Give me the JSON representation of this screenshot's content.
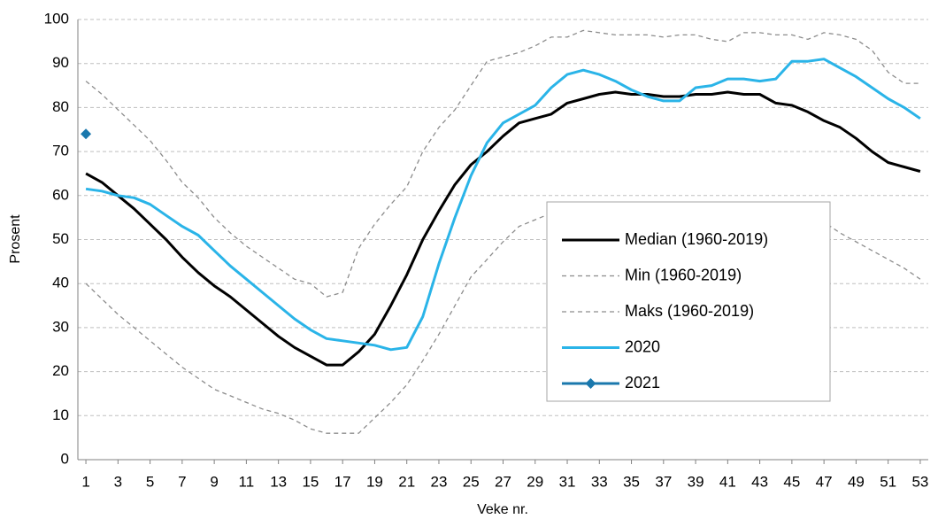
{
  "chart_data": {
    "type": "line",
    "x_label": "Veke nr.",
    "y_label": "Prosent",
    "x": [
      1,
      2,
      3,
      4,
      5,
      6,
      7,
      8,
      9,
      10,
      11,
      12,
      13,
      14,
      15,
      16,
      17,
      18,
      19,
      20,
      21,
      22,
      23,
      24,
      25,
      26,
      27,
      28,
      29,
      30,
      31,
      32,
      33,
      34,
      35,
      36,
      37,
      38,
      39,
      40,
      41,
      42,
      43,
      44,
      45,
      46,
      47,
      48,
      49,
      50,
      51,
      52,
      53
    ],
    "xlim": [
      0.5,
      53.5
    ],
    "xticks": [
      1,
      3,
      5,
      7,
      9,
      11,
      13,
      15,
      17,
      19,
      21,
      23,
      25,
      27,
      29,
      31,
      33,
      35,
      37,
      39,
      41,
      43,
      45,
      47,
      49,
      51,
      53
    ],
    "ylim": [
      0,
      100
    ],
    "yticks": [
      0,
      10,
      20,
      30,
      40,
      50,
      60,
      70,
      80,
      90,
      100
    ],
    "grid": true,
    "legend": "center right",
    "series": [
      {
        "name": "Median (1960-2019)",
        "color": "#000000",
        "linestyle": "solid",
        "values": [
          65,
          63,
          60,
          57,
          53.5,
          50,
          46,
          42.5,
          39.5,
          37,
          34,
          31,
          28,
          25.5,
          23.5,
          21.5,
          21.5,
          24.5,
          28.5,
          35,
          42,
          50,
          56.5,
          62.5,
          67,
          70,
          73.5,
          76.5,
          77.5,
          78.5,
          81,
          82,
          83,
          83.5,
          83,
          83,
          82.5,
          82.5,
          83,
          83,
          83.5,
          83,
          83,
          81,
          80.5,
          79,
          77,
          75.5,
          73,
          70,
          67.5,
          66.5,
          65.5
        ]
      },
      {
        "name": "Min (1960-2019)",
        "color": "#8c8c8c",
        "linestyle": "dashed",
        "values": [
          40,
          36.5,
          33,
          30,
          27,
          24,
          21,
          18.5,
          16,
          14.5,
          13,
          11.5,
          10.5,
          9,
          7,
          6,
          6,
          6,
          9.5,
          13,
          17,
          22.5,
          28.5,
          35,
          41.5,
          45.5,
          49.5,
          53,
          54.5,
          56,
          58,
          58.5,
          58,
          58,
          58.5,
          58,
          57,
          56,
          55,
          56.5,
          56,
          57,
          57.5,
          58.5,
          58.5,
          56.5,
          54,
          51.5,
          49.5,
          47.5,
          45.5,
          43.5,
          41
        ]
      },
      {
        "name": "Maks (1960-2019)",
        "color": "#8c8c8c",
        "linestyle": "dashed",
        "values": [
          86,
          83,
          79.5,
          76,
          72.5,
          68,
          63,
          59.5,
          55,
          51.5,
          48.5,
          46,
          43.5,
          41,
          40,
          37,
          38,
          48,
          53.5,
          58,
          62,
          70,
          75.5,
          79.5,
          85,
          90.5,
          91.5,
          92.5,
          94,
          96,
          96,
          97.5,
          97,
          96.5,
          96.5,
          96.5,
          96,
          96.5,
          96.5,
          95.5,
          95,
          97,
          97,
          96.5,
          96.5,
          95.5,
          97,
          96.5,
          95.5,
          93,
          88,
          85.5,
          85.5
        ]
      },
      {
        "name": "2020",
        "color": "#2ab4e8",
        "linestyle": "solid",
        "values": [
          61.5,
          61,
          60,
          59.5,
          58,
          55.5,
          53,
          51,
          47.5,
          44,
          41,
          38,
          35,
          32,
          29.5,
          27.5,
          27,
          26.5,
          26,
          25,
          25.5,
          32.5,
          44.5,
          55,
          64.5,
          72,
          76.5,
          78.5,
          80.5,
          84.5,
          87.5,
          88.5,
          87.5,
          86,
          84,
          82.5,
          81.5,
          81.5,
          84.5,
          85,
          86.5,
          86.5,
          86,
          86.5,
          90.5,
          90.5,
          91,
          89,
          87,
          84.5,
          82,
          80,
          77.5
        ]
      },
      {
        "name": "2021",
        "color": "#1a78ad",
        "linestyle": "solid",
        "marker": "diamond",
        "values": [
          74,
          null,
          null,
          null,
          null,
          null,
          null,
          null,
          null,
          null,
          null,
          null,
          null,
          null,
          null,
          null,
          null,
          null,
          null,
          null,
          null,
          null,
          null,
          null,
          null,
          null,
          null,
          null,
          null,
          null,
          null,
          null,
          null,
          null,
          null,
          null,
          null,
          null,
          null,
          null,
          null,
          null,
          null,
          null,
          null,
          null,
          null,
          null,
          null,
          null,
          null,
          null,
          null
        ]
      }
    ]
  }
}
